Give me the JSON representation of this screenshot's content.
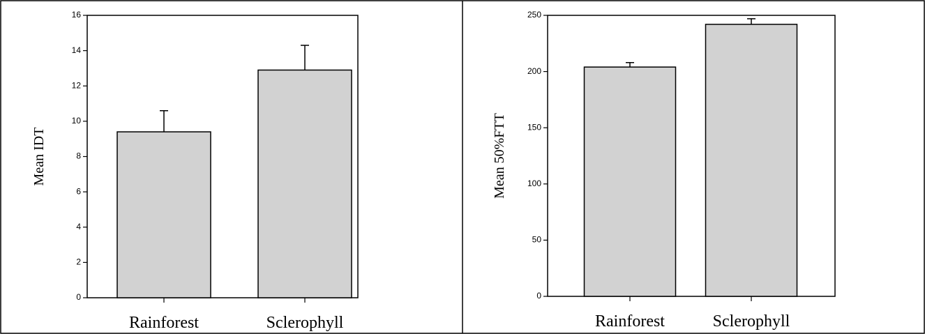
{
  "chart_data": [
    {
      "type": "bar",
      "ylabel": "Mean IDT",
      "categories": [
        "Rainforest",
        "Sclerophyll"
      ],
      "values": [
        9.4,
        12.9
      ],
      "errors": [
        1.2,
        1.4
      ],
      "color": "#d2d2d2",
      "ylim": [
        0,
        16
      ],
      "yticks": [
        0,
        2,
        4,
        6,
        8,
        10,
        12,
        14,
        16
      ]
    },
    {
      "type": "bar",
      "ylabel": "Mean 50%FTT",
      "categories": [
        "Rainforest",
        "Sclerophyll"
      ],
      "values": [
        204,
        242
      ],
      "errors": [
        4,
        5
      ],
      "color": "#d2d2d2",
      "ylim": [
        0,
        250
      ],
      "yticks": [
        0,
        50,
        100,
        150,
        200,
        250
      ]
    }
  ]
}
